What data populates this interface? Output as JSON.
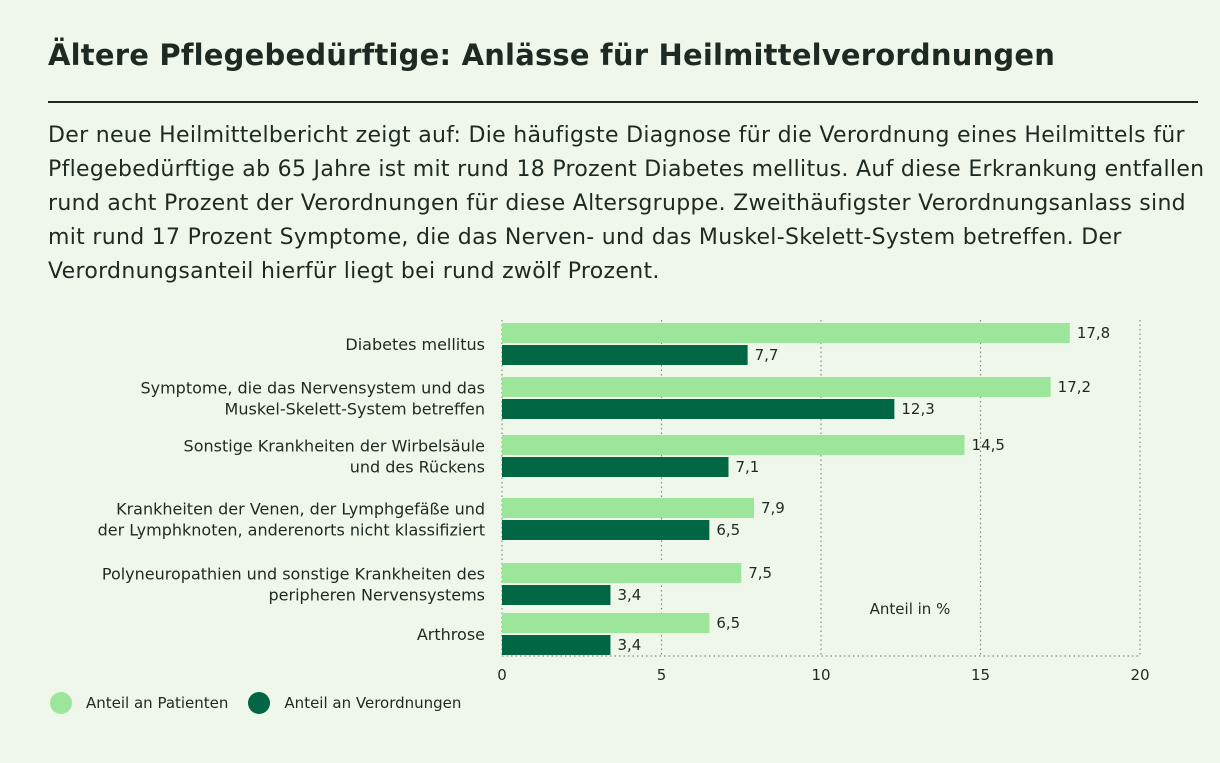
{
  "header": {
    "title": "Ältere Pflegebedürftige: Anlässe für Heilmittelverordnungen",
    "intro": "Der neue Heilmittelbericht zeigt auf: Die häufigste Diagnose für die Verordnung eines Heilmittels für Pflegebedürftige ab 65 Jahre ist mit rund 18 Prozent Diabetes mellitus. Auf diese Erkrankung entfallen rund acht Prozent der Verordnungen für diese Altersgruppe. Zweithäufigster Verordnungsanlass sind mit rund 17 Prozent Symptome, die das Nerven- und das Muskel-Skelett-System betreffen. Der Verordnungsanteil hierfür liegt bei rund zwölf Prozent."
  },
  "colors": {
    "patients": "#9be69a",
    "prescriptions": "#006644",
    "grid": "#888888",
    "text": "#1d2a22"
  },
  "chart_data": {
    "type": "bar",
    "orientation": "horizontal",
    "categories": [
      [
        "Diabetes mellitus"
      ],
      [
        "Symptome, die das Nervensystem und das",
        "Muskel-Skelett-System betreffen"
      ],
      [
        "Sonstige Krankheiten der Wirbelsäule",
        "und des Rückens"
      ],
      [
        "Krankheiten der Venen, der Lymphgefäße und",
        "der Lymphknoten, anderenorts nicht klassifiziert"
      ],
      [
        "Polyneuropathien und sonstige Krankheiten des",
        "peripheren Nervensystems"
      ],
      [
        "Arthrose"
      ]
    ],
    "series": [
      {
        "name": "Anteil an Patienten",
        "values": [
          17.8,
          17.2,
          14.5,
          7.9,
          7.5,
          6.5
        ],
        "labels": [
          "17,8",
          "17,2",
          "14,5",
          "7,9",
          "7,5",
          "6,5"
        ]
      },
      {
        "name": "Anteil an Verordnungen",
        "values": [
          7.7,
          12.3,
          7.1,
          6.5,
          3.4,
          3.4
        ],
        "labels": [
          "7,7",
          "12,3",
          "7,1",
          "6,5",
          "3,4",
          "3,4"
        ]
      }
    ],
    "xlim": [
      0,
      20
    ],
    "xticks": [
      "0",
      "5",
      "10",
      "15",
      "20"
    ],
    "xlabel": "Anteil in %",
    "grid": "vertical-dotted",
    "legend": "bottom-left"
  }
}
